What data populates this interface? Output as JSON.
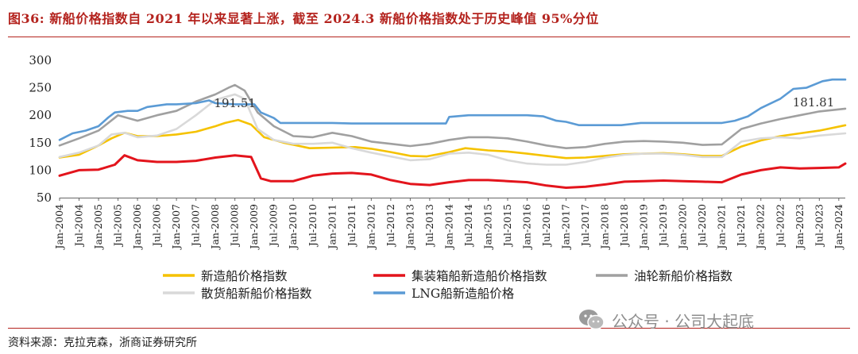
{
  "figure": {
    "title": "图36:   新船价格指数自 2021 年以来显著上涨，截至 2024.3 新船价格指数处于历史峰值 95%分位",
    "source": "资料来源：克拉克森，浙商证券研究所",
    "watermark": "公众号 · 公司大起底",
    "watermark_icon": "wechat-icon"
  },
  "chart_data": {
    "type": "line",
    "title": "",
    "xlabel": "",
    "ylabel": "",
    "ylim": [
      50,
      300
    ],
    "yticks": [
      50,
      100,
      150,
      200,
      250,
      300
    ],
    "grid": false,
    "legend_position": "bottom",
    "x_tick_labels": [
      "Jan-2004",
      "Jul-2004",
      "Jan-2005",
      "Jul-2005",
      "Jan-2006",
      "Jul-2006",
      "Jan-2007",
      "Jul-2007",
      "Jan-2008",
      "Jul-2008",
      "Jan-2009",
      "Jul-2009",
      "Jan-2010",
      "Jul-2010",
      "Jan-2011",
      "Jul-2011",
      "Jan-2012",
      "Jul-2012",
      "Jan-2013",
      "Jul-2013",
      "Jan-2014",
      "Jul-2014",
      "Jan-2015",
      "Jul-2015",
      "Jan-2016",
      "Jul-2016",
      "Jan-2017",
      "Jul-2017",
      "Jan-2018",
      "Jul-2018",
      "Jan-2019",
      "Jul-2019",
      "Jan-2020",
      "Jul-2020",
      "Jan-2021",
      "Jul-2021",
      "Jan-2022",
      "Jul-2022",
      "Jan-2023",
      "Jul-2023",
      "Jan-2024"
    ],
    "x_range": [
      "2004-01",
      "2024-03"
    ],
    "annotations": [
      {
        "text": "191.51",
        "x": "2008-07",
        "y": 191.51
      },
      {
        "text": "181.81",
        "x": "2024-03",
        "y": 181.81
      }
    ],
    "series": [
      {
        "name": "新造船价格指数",
        "color": "#f5c200",
        "points": [
          [
            "2004-01",
            123
          ],
          [
            "2004-07",
            128
          ],
          [
            "2005-01",
            145
          ],
          [
            "2005-05",
            158
          ],
          [
            "2005-09",
            168
          ],
          [
            "2006-01",
            162
          ],
          [
            "2006-07",
            162
          ],
          [
            "2007-01",
            165
          ],
          [
            "2007-07",
            170
          ],
          [
            "2008-01",
            180
          ],
          [
            "2008-04",
            186
          ],
          [
            "2008-08",
            191.51
          ],
          [
            "2008-12",
            183
          ],
          [
            "2009-04",
            160
          ],
          [
            "2009-10",
            150
          ],
          [
            "2010-06",
            140
          ],
          [
            "2011-01",
            141
          ],
          [
            "2011-08",
            142
          ],
          [
            "2012-01",
            139
          ],
          [
            "2012-07",
            133
          ],
          [
            "2013-01",
            126
          ],
          [
            "2013-06",
            125
          ],
          [
            "2014-01",
            133
          ],
          [
            "2014-06",
            140
          ],
          [
            "2015-01",
            136
          ],
          [
            "2015-07",
            134
          ],
          [
            "2016-01",
            130
          ],
          [
            "2016-07",
            126
          ],
          [
            "2017-01",
            122
          ],
          [
            "2017-07",
            123
          ],
          [
            "2018-01",
            126
          ],
          [
            "2018-07",
            129
          ],
          [
            "2019-01",
            130
          ],
          [
            "2019-07",
            131
          ],
          [
            "2020-01",
            129
          ],
          [
            "2020-07",
            126
          ],
          [
            "2021-01",
            126
          ],
          [
            "2021-07",
            143
          ],
          [
            "2022-01",
            154
          ],
          [
            "2022-07",
            162
          ],
          [
            "2023-01",
            167
          ],
          [
            "2023-07",
            172
          ],
          [
            "2024-03",
            181.81
          ]
        ]
      },
      {
        "name": "集装箱船新造船价格指数",
        "color": "#e3141c",
        "points": [
          [
            "2004-01",
            90
          ],
          [
            "2004-07",
            100
          ],
          [
            "2005-01",
            101
          ],
          [
            "2005-06",
            110
          ],
          [
            "2005-09",
            127
          ],
          [
            "2006-01",
            118
          ],
          [
            "2006-07",
            115
          ],
          [
            "2007-01",
            115
          ],
          [
            "2007-07",
            117
          ],
          [
            "2008-01",
            123
          ],
          [
            "2008-07",
            127
          ],
          [
            "2008-12",
            124
          ],
          [
            "2009-03",
            85
          ],
          [
            "2009-06",
            80
          ],
          [
            "2010-01",
            80
          ],
          [
            "2010-07",
            90
          ],
          [
            "2011-01",
            94
          ],
          [
            "2011-07",
            95
          ],
          [
            "2012-01",
            92
          ],
          [
            "2012-07",
            82
          ],
          [
            "2013-01",
            75
          ],
          [
            "2013-07",
            73
          ],
          [
            "2014-01",
            78
          ],
          [
            "2014-07",
            82
          ],
          [
            "2015-01",
            82
          ],
          [
            "2015-07",
            80
          ],
          [
            "2016-01",
            78
          ],
          [
            "2016-07",
            72
          ],
          [
            "2017-01",
            68
          ],
          [
            "2017-07",
            70
          ],
          [
            "2018-01",
            74
          ],
          [
            "2018-07",
            79
          ],
          [
            "2019-01",
            80
          ],
          [
            "2019-07",
            81
          ],
          [
            "2020-01",
            80
          ],
          [
            "2020-07",
            79
          ],
          [
            "2021-01",
            78
          ],
          [
            "2021-07",
            92
          ],
          [
            "2022-01",
            100
          ],
          [
            "2022-07",
            105
          ],
          [
            "2023-01",
            103
          ],
          [
            "2023-07",
            104
          ],
          [
            "2024-01",
            105
          ],
          [
            "2024-03",
            112
          ]
        ]
      },
      {
        "name": "油轮新船价格指数",
        "color": "#a0a0a0",
        "points": [
          [
            "2004-01",
            145
          ],
          [
            "2004-07",
            158
          ],
          [
            "2005-01",
            172
          ],
          [
            "2005-07",
            200
          ],
          [
            "2006-01",
            190
          ],
          [
            "2006-07",
            200
          ],
          [
            "2007-01",
            208
          ],
          [
            "2007-07",
            225
          ],
          [
            "2008-01",
            238
          ],
          [
            "2008-05",
            250
          ],
          [
            "2008-07",
            255
          ],
          [
            "2008-10",
            245
          ],
          [
            "2009-02",
            205
          ],
          [
            "2009-07",
            180
          ],
          [
            "2010-01",
            162
          ],
          [
            "2010-07",
            160
          ],
          [
            "2011-01",
            168
          ],
          [
            "2011-07",
            162
          ],
          [
            "2012-01",
            152
          ],
          [
            "2012-07",
            148
          ],
          [
            "2013-01",
            144
          ],
          [
            "2013-07",
            148
          ],
          [
            "2014-01",
            155
          ],
          [
            "2014-07",
            160
          ],
          [
            "2015-01",
            160
          ],
          [
            "2015-07",
            158
          ],
          [
            "2016-01",
            152
          ],
          [
            "2016-07",
            145
          ],
          [
            "2017-01",
            140
          ],
          [
            "2017-07",
            142
          ],
          [
            "2018-01",
            148
          ],
          [
            "2018-07",
            152
          ],
          [
            "2019-01",
            153
          ],
          [
            "2019-07",
            152
          ],
          [
            "2020-01",
            150
          ],
          [
            "2020-07",
            146
          ],
          [
            "2021-01",
            147
          ],
          [
            "2021-07",
            175
          ],
          [
            "2022-01",
            185
          ],
          [
            "2022-07",
            193
          ],
          [
            "2023-01",
            200
          ],
          [
            "2023-07",
            207
          ],
          [
            "2024-03",
            212
          ]
        ]
      },
      {
        "name": "散货船新船价格指数",
        "color": "#d9d9d9",
        "points": [
          [
            "2004-01",
            124
          ],
          [
            "2004-07",
            132
          ],
          [
            "2005-01",
            145
          ],
          [
            "2005-05",
            165
          ],
          [
            "2005-09",
            168
          ],
          [
            "2006-01",
            160
          ],
          [
            "2006-07",
            163
          ],
          [
            "2007-01",
            175
          ],
          [
            "2007-07",
            200
          ],
          [
            "2008-01",
            228
          ],
          [
            "2008-07",
            238
          ],
          [
            "2008-10",
            230
          ],
          [
            "2009-02",
            175
          ],
          [
            "2009-07",
            155
          ],
          [
            "2010-01",
            148
          ],
          [
            "2010-07",
            148
          ],
          [
            "2011-01",
            150
          ],
          [
            "2011-07",
            140
          ],
          [
            "2012-01",
            132
          ],
          [
            "2012-07",
            125
          ],
          [
            "2013-01",
            118
          ],
          [
            "2013-07",
            120
          ],
          [
            "2014-01",
            130
          ],
          [
            "2014-07",
            132
          ],
          [
            "2015-01",
            128
          ],
          [
            "2015-07",
            118
          ],
          [
            "2016-01",
            112
          ],
          [
            "2016-07",
            110
          ],
          [
            "2017-01",
            110
          ],
          [
            "2017-07",
            115
          ],
          [
            "2018-01",
            123
          ],
          [
            "2018-07",
            128
          ],
          [
            "2019-01",
            130
          ],
          [
            "2019-07",
            130
          ],
          [
            "2020-01",
            128
          ],
          [
            "2020-07",
            124
          ],
          [
            "2021-01",
            124
          ],
          [
            "2021-07",
            152
          ],
          [
            "2022-01",
            158
          ],
          [
            "2022-07",
            160
          ],
          [
            "2023-01",
            158
          ],
          [
            "2023-07",
            163
          ],
          [
            "2024-03",
            167
          ]
        ]
      },
      {
        "name": "LNG船新造船价格",
        "color": "#5b9bd5",
        "points": [
          [
            "2004-01",
            155
          ],
          [
            "2004-05",
            167
          ],
          [
            "2004-09",
            172
          ],
          [
            "2005-01",
            180
          ],
          [
            "2005-04",
            196
          ],
          [
            "2005-06",
            205
          ],
          [
            "2005-10",
            208
          ],
          [
            "2006-01",
            208
          ],
          [
            "2006-04",
            215
          ],
          [
            "2006-10",
            220
          ],
          [
            "2007-01",
            220
          ],
          [
            "2007-07",
            222
          ],
          [
            "2007-11",
            227
          ],
          [
            "2008-01",
            222
          ],
          [
            "2008-07",
            220
          ],
          [
            "2009-01",
            220
          ],
          [
            "2009-03",
            205
          ],
          [
            "2009-07",
            195
          ],
          [
            "2009-09",
            186
          ],
          [
            "2010-06",
            186
          ],
          [
            "2011-01",
            186
          ],
          [
            "2011-07",
            185
          ],
          [
            "2012-01",
            185
          ],
          [
            "2012-07",
            185
          ],
          [
            "2013-01",
            185
          ],
          [
            "2013-12",
            185
          ],
          [
            "2014-01",
            197
          ],
          [
            "2014-07",
            200
          ],
          [
            "2015-01",
            200
          ],
          [
            "2015-07",
            200
          ],
          [
            "2016-01",
            200
          ],
          [
            "2016-06",
            198
          ],
          [
            "2016-10",
            190
          ],
          [
            "2017-01",
            188
          ],
          [
            "2017-05",
            182
          ],
          [
            "2017-12",
            182
          ],
          [
            "2018-06",
            182
          ],
          [
            "2018-12",
            186
          ],
          [
            "2019-06",
            186
          ],
          [
            "2020-01",
            186
          ],
          [
            "2020-07",
            186
          ],
          [
            "2021-01",
            186
          ],
          [
            "2021-05",
            190
          ],
          [
            "2021-09",
            198
          ],
          [
            "2022-01",
            213
          ],
          [
            "2022-07",
            230
          ],
          [
            "2022-11",
            248
          ],
          [
            "2023-03",
            250
          ],
          [
            "2023-08",
            262
          ],
          [
            "2023-11",
            265
          ],
          [
            "2024-03",
            265
          ]
        ]
      }
    ]
  }
}
